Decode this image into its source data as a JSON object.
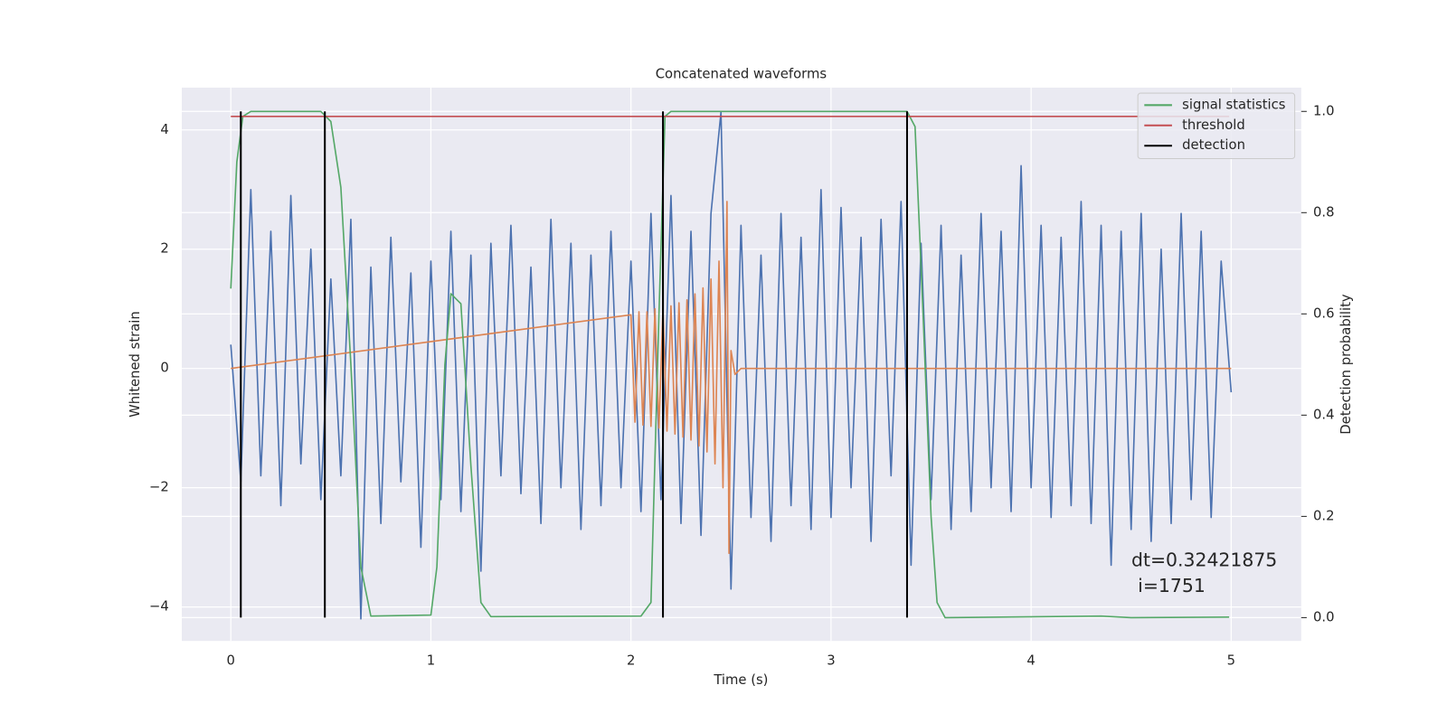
{
  "chart_data": {
    "type": "line",
    "title": "Concatenated waveforms",
    "xlabel": "Time (s)",
    "ylabel": "Whitened strain",
    "y2label": "Detection probability",
    "xlim": [
      -0.245,
      5.35
    ],
    "ylim": [
      -4.57,
      4.71
    ],
    "y2lim": [
      -0.046,
      1.047
    ],
    "xticks": [
      0,
      1,
      2,
      3,
      4,
      5
    ],
    "yticks": [
      {
        "value": -4,
        "label": "−4"
      },
      {
        "value": -2,
        "label": "−2"
      },
      0,
      2,
      4
    ],
    "y2ticks": [
      {
        "value": 0,
        "label": "0.0"
      },
      0.2,
      0.4,
      0.6,
      0.8,
      {
        "value": 1,
        "label": "1.0"
      }
    ],
    "grid": true,
    "legend": "upper right",
    "annotation": [
      "dt=0.32421875",
      "i=1751"
    ],
    "series": [
      {
        "color": "#4c72b0",
        "x": [
          0,
          0.05,
          0.1,
          0.15,
          0.2,
          0.25,
          0.3,
          0.35,
          0.4,
          0.45,
          0.5,
          0.55,
          0.6,
          0.65,
          0.7,
          0.75,
          0.8,
          0.85,
          0.9,
          0.95,
          1,
          1.05,
          1.1,
          1.15,
          1.2,
          1.25,
          1.3,
          1.35,
          1.4,
          1.45,
          1.5,
          1.55,
          1.6,
          1.65,
          1.7,
          1.75,
          1.8,
          1.85,
          1.9,
          1.95,
          2,
          2.05,
          2.1,
          2.15,
          2.2,
          2.25,
          2.3,
          2.35,
          2.4,
          2.45,
          2.5,
          2.55,
          2.6,
          2.65,
          2.7,
          2.75,
          2.8,
          2.85,
          2.9,
          2.95,
          3,
          3.05,
          3.1,
          3.15,
          3.2,
          3.25,
          3.3,
          3.35,
          3.4,
          3.45,
          3.5,
          3.55,
          3.6,
          3.65,
          3.7,
          3.75,
          3.8,
          3.85,
          3.9,
          3.95,
          4,
          4.05,
          4.1,
          4.15,
          4.2,
          4.25,
          4.3,
          4.35,
          4.4,
          4.45,
          4.5,
          4.55,
          4.6,
          4.65,
          4.7,
          4.75,
          4.8,
          4.85,
          4.9,
          4.95,
          5
        ],
        "values": [
          0.4,
          -1.9,
          3.0,
          -1.8,
          2.3,
          -2.3,
          2.9,
          -1.6,
          2.0,
          -2.2,
          1.5,
          -1.8,
          2.5,
          -4.2,
          1.7,
          -2.6,
          2.2,
          -1.9,
          1.6,
          -3.0,
          1.8,
          -2.2,
          2.3,
          -2.4,
          1.9,
          -3.4,
          2.1,
          -1.8,
          2.4,
          -2.1,
          1.7,
          -2.6,
          2.5,
          -2.0,
          2.1,
          -2.7,
          1.9,
          -2.3,
          2.3,
          -2.0,
          1.8,
          -2.4,
          2.6,
          -2.2,
          2.9,
          -2.6,
          2.3,
          -2.8,
          2.6,
          4.3,
          -3.7,
          2.4,
          -2.5,
          1.9,
          -2.9,
          2.6,
          -2.3,
          2.2,
          -2.7,
          3.0,
          -2.5,
          2.7,
          -2.0,
          2.2,
          -2.9,
          2.5,
          -1.8,
          2.8,
          -3.3,
          2.1,
          -2.2,
          2.4,
          -2.7,
          1.9,
          -2.4,
          2.6,
          -2.0,
          2.3,
          -2.4,
          3.4,
          -2.0,
          2.4,
          -2.5,
          2.2,
          -2.3,
          2.8,
          -2.6,
          2.4,
          -3.3,
          2.3,
          -2.7,
          2.6,
          -2.9,
          2.0,
          -2.6,
          2.6,
          -2.2,
          2.3,
          -2.5,
          1.8,
          -0.4
        ]
      },
      {
        "color": "#dd8452",
        "x": [
          0,
          2,
          2.02,
          2.04,
          2.06,
          2.08,
          2.1,
          2.12,
          2.14,
          2.16,
          2.18,
          2.2,
          2.22,
          2.24,
          2.26,
          2.28,
          2.3,
          2.32,
          2.34,
          2.36,
          2.38,
          2.4,
          2.42,
          2.44,
          2.46,
          2.48,
          2.49,
          2.5,
          2.52,
          2.55,
          5
        ],
        "values": [
          0,
          0.9,
          -0.9,
          0.95,
          -0.95,
          0.95,
          -0.97,
          1.0,
          -1.0,
          1.0,
          -1.05,
          1.05,
          -1.1,
          1.1,
          -1.15,
          1.15,
          -1.2,
          1.25,
          -1.3,
          1.35,
          -1.4,
          1.5,
          -1.6,
          1.8,
          -2.0,
          2.8,
          -3.1,
          0.3,
          -0.1,
          0,
          0
        ]
      },
      {
        "name": "signal statistics",
        "color": "#55a868",
        "axis": "y2",
        "x": [
          0,
          0.03,
          0.06,
          0.1,
          0.45,
          0.5,
          0.55,
          0.6,
          0.65,
          0.7,
          1.0,
          1.03,
          1.07,
          1.1,
          1.15,
          1.2,
          1.25,
          1.3,
          2.05,
          2.1,
          2.14,
          2.17,
          2.2,
          3.38,
          3.42,
          3.46,
          3.5,
          3.53,
          3.57,
          4.35,
          4.5,
          4.99
        ],
        "values": [
          0.65,
          0.9,
          0.99,
          1.0,
          1.0,
          0.98,
          0.85,
          0.5,
          0.1,
          0.003,
          0.005,
          0.1,
          0.5,
          0.64,
          0.62,
          0.3,
          0.03,
          0.002,
          0.003,
          0.03,
          0.6,
          0.99,
          1.0,
          1.0,
          0.97,
          0.6,
          0.2,
          0.03,
          0.0,
          0.003,
          0.0,
          0.001
        ]
      },
      {
        "name": "threshold",
        "color": "#c44e52",
        "axis": "y2",
        "x": [
          0,
          4.99
        ],
        "values": [
          0.99,
          0.99
        ]
      },
      {
        "name": "detection",
        "color": "#000000",
        "axis": "y2",
        "kind": "vlines",
        "x": [
          0.05,
          0.47,
          2.16,
          3.38
        ],
        "ymin": 0,
        "ymax": 1
      }
    ]
  }
}
